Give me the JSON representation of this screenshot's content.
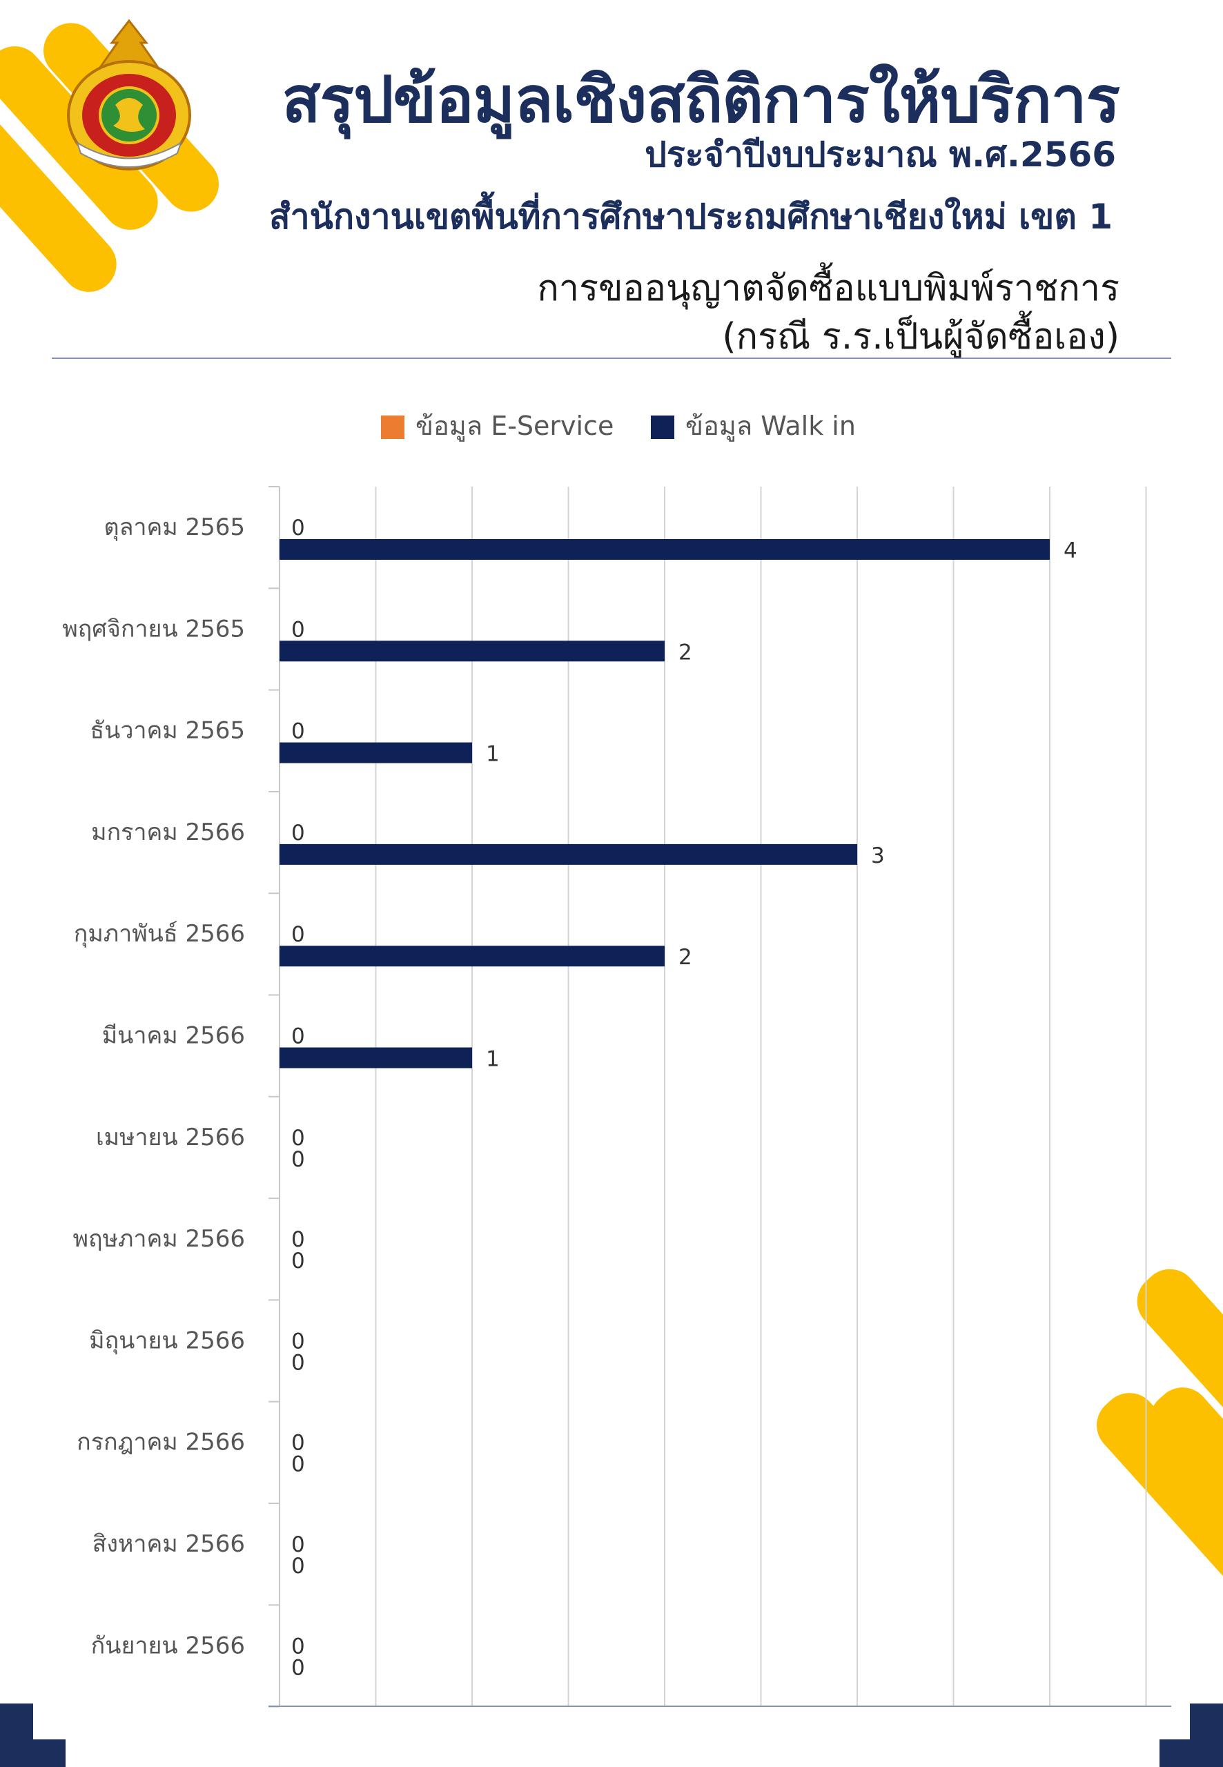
{
  "header": {
    "title": "สรุปข้อมูลเชิงสถิติการให้บริการ",
    "subtitle": "ประจำปีงบประมาณ พ.ศ.2566",
    "organization": "สำนักงานเขตพื้นที่การศึกษาประถมศึกษาเชียงใหม่ เขต 1",
    "service_line1": "การขออนุญาตจัดซื้อแบบพิมพ์ราชการ",
    "service_line2": "(กรณี ร.ร.เป็นผู้จัดซื้อเอง)"
  },
  "colors": {
    "navy": "#0f2258",
    "orange": "#ec7c30",
    "yellow": "#fdc000",
    "gridline": "#d4d4d4",
    "title": "#1b2e5c"
  },
  "logo": {
    "icon": "office-emblem-icon"
  },
  "chart_data": {
    "type": "bar",
    "orientation": "horizontal",
    "categories": [
      "ตุลาคม 2565",
      "พฤศจิกายน 2565",
      "ธันวาคม 2565",
      "มกราคม 2566",
      "กุมภาพันธ์ 2566",
      "มีนาคม 2566",
      "เมษายน 2566",
      "พฤษภาคม 2566",
      "มิถุนายน 2566",
      "กรกฎาคม 2566",
      "สิงหาคม 2566",
      "กันยายน 2566"
    ],
    "series": [
      {
        "name": "ข้อมูล E-Service",
        "color": "#ec7c30",
        "values": [
          0,
          0,
          0,
          0,
          0,
          0,
          0,
          0,
          0,
          0,
          0,
          0
        ]
      },
      {
        "name": "ข้อมูล Walk in",
        "color": "#0f2258",
        "values": [
          4,
          2,
          1,
          3,
          2,
          1,
          0,
          0,
          0,
          0,
          0,
          0
        ]
      }
    ],
    "xlim": [
      0,
      4.5
    ],
    "grid": true,
    "legend": "top"
  }
}
